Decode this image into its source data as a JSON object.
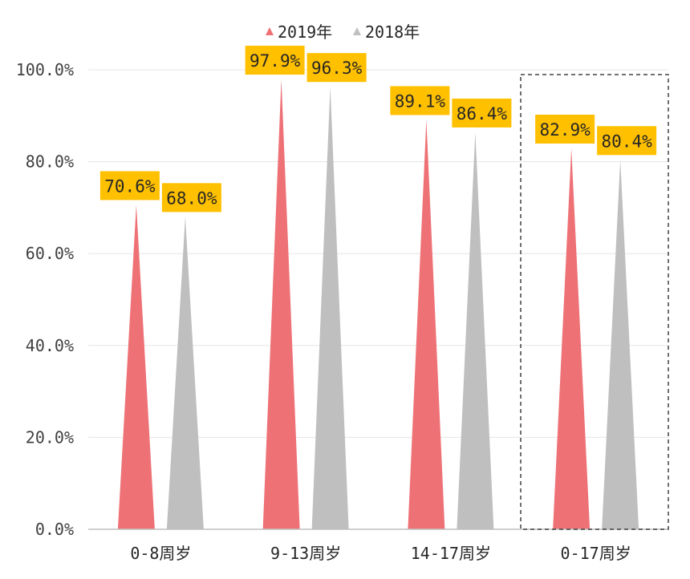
{
  "colors": {
    "series_2019": "#ee7176",
    "series_2018": "#bfbfbf",
    "label_bg": "#ffc000",
    "grid": "#e6e6e6",
    "axis": "#bfbfbf",
    "highlight_box": "#404040"
  },
  "chart_data": {
    "type": "bar",
    "bar_shape": "triangle",
    "categories": [
      "0-8周岁",
      "9-13周岁",
      "14-17周岁",
      "0-17周岁"
    ],
    "series": [
      {
        "name": "2019年",
        "values": [
          70.6,
          97.9,
          89.1,
          82.9
        ],
        "labels": [
          "70.6%",
          "97.9%",
          "89.1%",
          "82.9%"
        ]
      },
      {
        "name": "2018年",
        "values": [
          68.0,
          96.3,
          86.4,
          80.4
        ],
        "labels": [
          "68.0%",
          "96.3%",
          "86.4%",
          "80.4%"
        ]
      }
    ],
    "ylim": [
      0,
      100
    ],
    "yticks": [
      "0.0%",
      "20.0%",
      "40.0%",
      "60.0%",
      "80.0%",
      "100.0%"
    ],
    "grid": true,
    "legend": "top-center",
    "highlighted_category": "0-17周岁",
    "title": "",
    "xlabel": "",
    "ylabel": ""
  }
}
